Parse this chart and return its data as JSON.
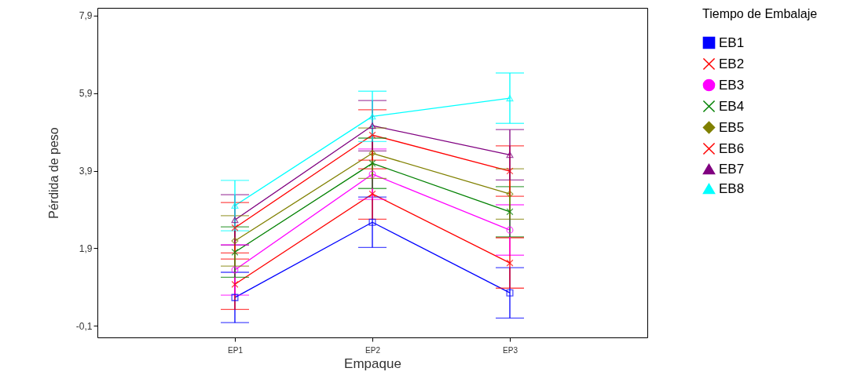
{
  "chart_data": {
    "type": "line",
    "xlabel": "Empaque",
    "ylabel": "Pérdida de peso",
    "legend_title": "Tiempo de Embalaje",
    "legend": "right",
    "grid": false,
    "categories": [
      "EP1",
      "EP2",
      "EP3"
    ],
    "ylim": [
      -0.4,
      8.1
    ],
    "yticks": [
      {
        "value": -0.1,
        "label": "-0,1"
      },
      {
        "value": 1.9,
        "label": "1,9"
      },
      {
        "value": 3.9,
        "label": "3,9"
      },
      {
        "value": 5.9,
        "label": "5,9"
      },
      {
        "value": 7.9,
        "label": "7,9"
      }
    ],
    "series": [
      {
        "name": "EB1",
        "color": "#0000ff",
        "marker": "square",
        "values": [
          0.63,
          2.57,
          0.75
        ],
        "errors": [
          0.65,
          0.65,
          0.65
        ]
      },
      {
        "name": "EB2",
        "color": "#ff0000",
        "marker": "cross",
        "values": [
          0.97,
          3.3,
          1.52
        ],
        "errors": [
          0.65,
          0.65,
          0.65
        ]
      },
      {
        "name": "EB3",
        "color": "#ff00ff",
        "marker": "circle",
        "values": [
          1.34,
          3.81,
          2.37
        ],
        "errors": [
          0.65,
          0.65,
          0.65
        ]
      },
      {
        "name": "EB4",
        "color": "#008000",
        "marker": "cross",
        "values": [
          1.8,
          4.09,
          2.84
        ],
        "errors": [
          0.65,
          0.65,
          0.65
        ]
      },
      {
        "name": "EB5",
        "color": "#808000",
        "marker": "diamond",
        "values": [
          2.09,
          4.35,
          3.3
        ],
        "errors": [
          0.65,
          0.65,
          0.65
        ]
      },
      {
        "name": "EB6",
        "color": "#ff0000",
        "marker": "cross",
        "values": [
          2.43,
          4.82,
          3.89
        ],
        "errors": [
          0.65,
          0.65,
          0.65
        ]
      },
      {
        "name": "EB7",
        "color": "#800080",
        "marker": "triangle",
        "values": [
          2.63,
          5.06,
          4.31
        ],
        "errors": [
          0.65,
          0.65,
          0.65
        ]
      },
      {
        "name": "EB8",
        "color": "#00ffff",
        "marker": "triangle",
        "values": [
          3.0,
          5.3,
          5.77
        ],
        "errors": [
          0.65,
          0.65,
          0.65
        ]
      }
    ]
  }
}
